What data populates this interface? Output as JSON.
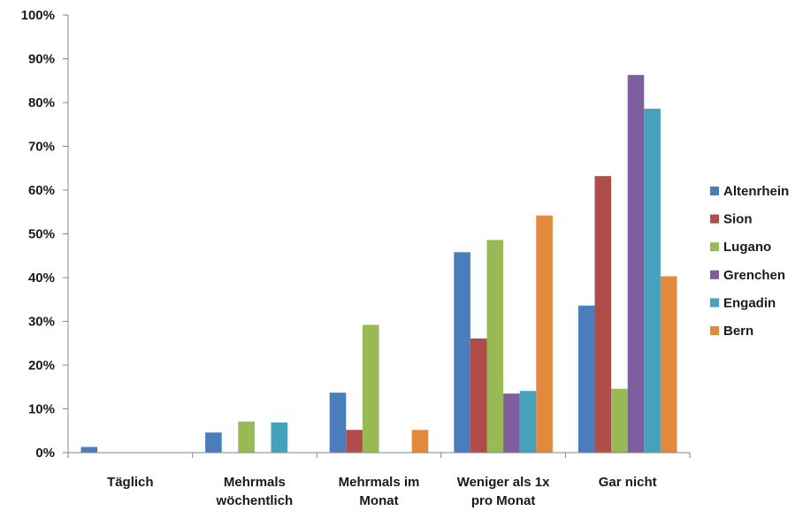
{
  "chart_data": {
    "type": "bar",
    "categories": [
      [
        "Täglich"
      ],
      [
        "Mehrmals",
        "wöchentlich"
      ],
      [
        "Mehrmals im",
        "Monat"
      ],
      [
        "Weniger als 1x",
        "pro Monat"
      ],
      [
        "Gar nicht"
      ]
    ],
    "series": [
      {
        "name": "Altenrhein",
        "color": "#4a7ebb",
        "values": [
          1.3,
          4.6,
          13.7,
          45.8,
          33.6
        ]
      },
      {
        "name": "Sion",
        "color": "#b04c4a",
        "values": [
          0,
          0,
          5.2,
          26.1,
          63.2
        ]
      },
      {
        "name": "Lugano",
        "color": "#98b954",
        "values": [
          0,
          7.1,
          29.2,
          48.6,
          14.6
        ]
      },
      {
        "name": "Grenchen",
        "color": "#7d5fa0",
        "values": [
          0,
          0,
          0,
          13.5,
          86.3
        ]
      },
      {
        "name": "Engadin",
        "color": "#46a1bc",
        "values": [
          0,
          6.9,
          0,
          14.1,
          78.6
        ]
      },
      {
        "name": "Bern",
        "color": "#e18a3d",
        "values": [
          0,
          0,
          5.2,
          54.2,
          40.3
        ]
      }
    ],
    "ylim": [
      0,
      100
    ],
    "yticks": [
      "0%",
      "10%",
      "20%",
      "30%",
      "40%",
      "50%",
      "60%",
      "70%",
      "80%",
      "90%",
      "100%"
    ],
    "legend_position": "right",
    "grid": false
  }
}
